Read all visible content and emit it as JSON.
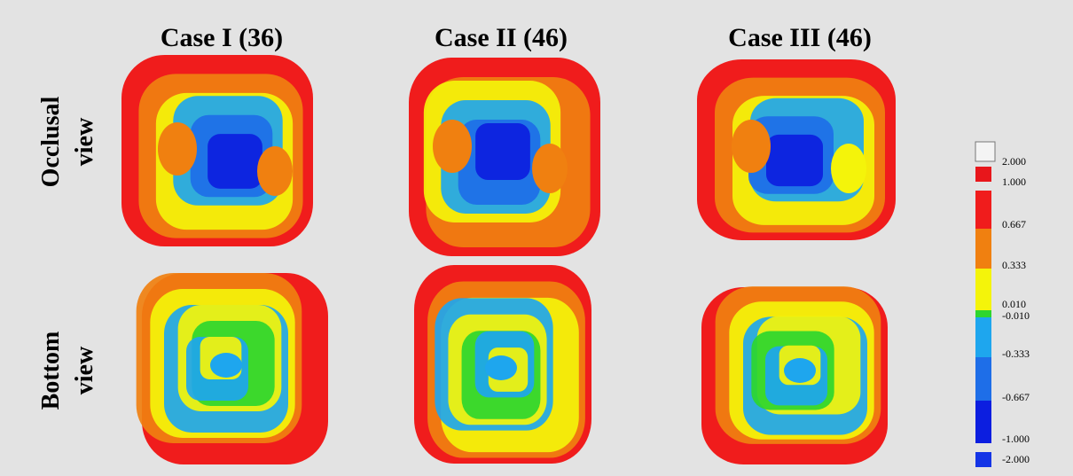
{
  "columns": [
    "Case I (36)",
    "Case II (46)",
    "Case III (46)"
  ],
  "rows": [
    {
      "line1": "Occlusal",
      "line2": "view"
    },
    {
      "line1": "Bottom",
      "line2": "view"
    }
  ],
  "legend": {
    "labels": [
      "2.000",
      "1.000",
      "0.667",
      "0.333",
      "0.010",
      "-0.010",
      "-0.333",
      "-0.667",
      "-1.000",
      "-2.000"
    ]
  }
}
